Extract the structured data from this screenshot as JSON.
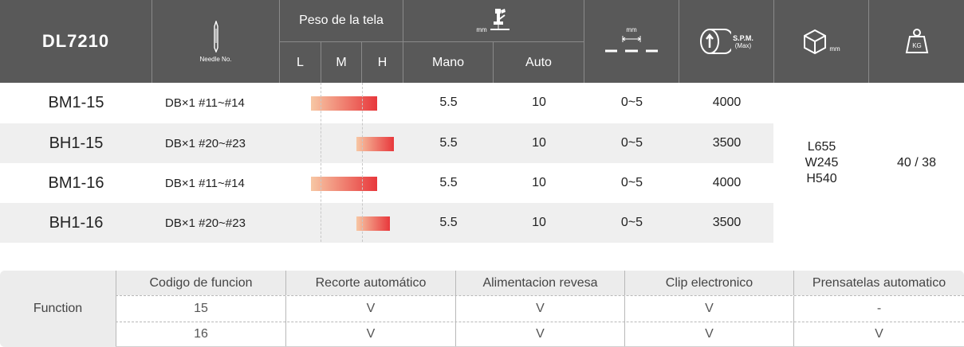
{
  "header": {
    "model": "DL7210",
    "needle_label": "Needle No.",
    "fabric_weight": "Peso de la tela",
    "weight_levels": [
      "L",
      "M",
      "H"
    ],
    "lift_unit": "mm",
    "lift_modes": [
      "Mano",
      "Auto"
    ],
    "stitch_unit": "mm",
    "spm_label": "S.P.M.",
    "spm_sub": "(Max)",
    "dimension_unit": "mm",
    "weight_icon_text": "KG"
  },
  "rows": [
    {
      "model": "BM1-15",
      "needle": "DB×1  #11~#14",
      "weight_range": [
        0.0,
        0.8
      ],
      "mano": "5.5",
      "auto": "10",
      "stitch": "0~5",
      "spm": "4000"
    },
    {
      "model": "BH1-15",
      "needle": "DB×1  #20~#23",
      "weight_range": [
        0.55,
        1.0
      ],
      "mano": "5.5",
      "auto": "10",
      "stitch": "0~5",
      "spm": "3500"
    },
    {
      "model": "BM1-16",
      "needle": "DB×1  #11~#14",
      "weight_range": [
        0.0,
        0.8
      ],
      "mano": "5.5",
      "auto": "10",
      "stitch": "0~5",
      "spm": "4000"
    },
    {
      "model": "BH1-16",
      "needle": "DB×1  #20~#23",
      "weight_range": [
        0.55,
        0.95
      ],
      "mano": "5.5",
      "auto": "10",
      "stitch": "0~5",
      "spm": "3500"
    }
  ],
  "dimensions": {
    "l": "L655",
    "w": "W245",
    "h": "H540"
  },
  "weight": "40 / 38",
  "function": {
    "label": "Function",
    "headers": [
      "Codigo de funcion",
      "Recorte automático",
      "Alimentacion revesa",
      "Clip electronico",
      "Prensatelas automatico"
    ],
    "rows": [
      [
        "15",
        "V",
        "V",
        "V",
        "-"
      ],
      [
        "16",
        "V",
        "V",
        "V",
        "V"
      ]
    ]
  },
  "colors": {
    "header_bg": "#595959",
    "bar_start": "#f7c7a4",
    "bar_end": "#e8383c",
    "alt_row": "#efefef"
  }
}
